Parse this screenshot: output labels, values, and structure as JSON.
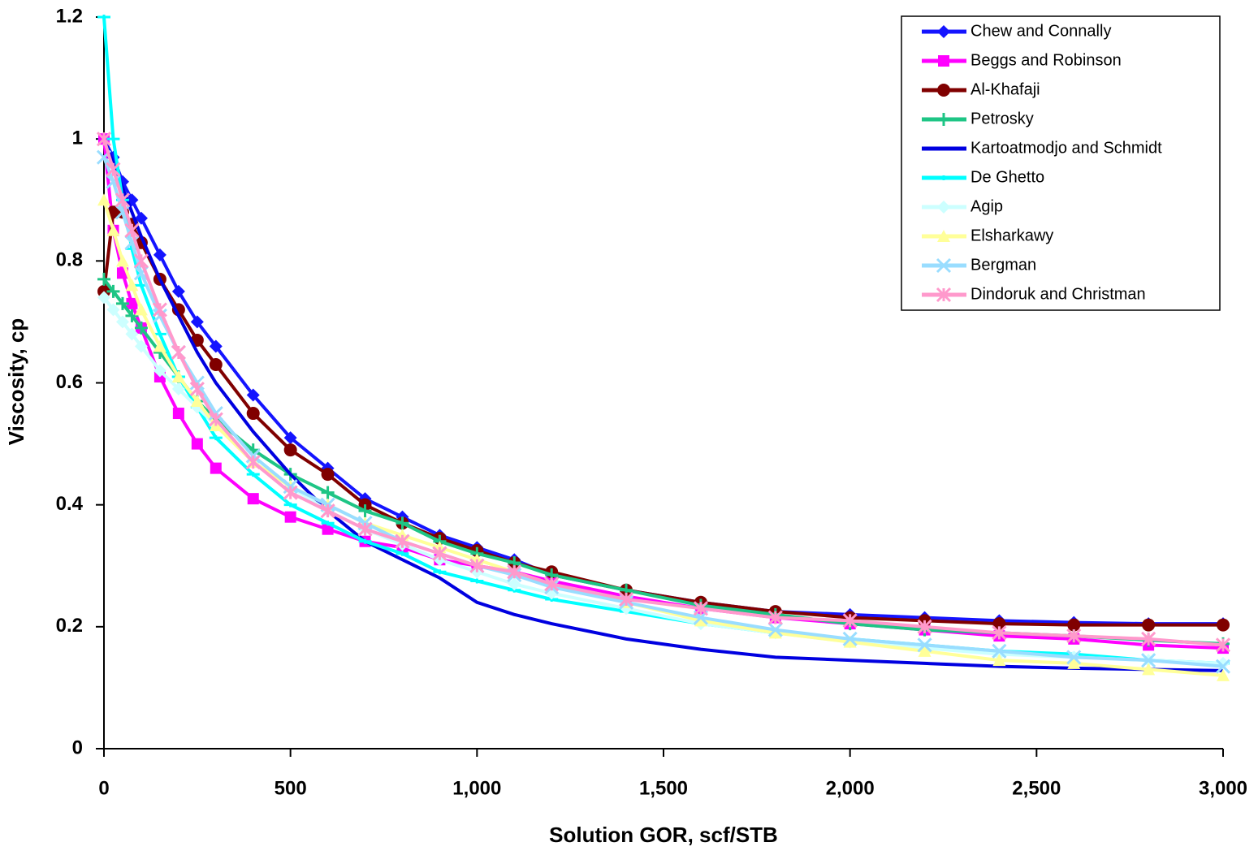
{
  "chart_data": {
    "type": "line",
    "xlabel": "Solution GOR, scf/STB",
    "ylabel": "Viscosity, cp",
    "x": [
      0,
      25,
      50,
      75,
      100,
      150,
      200,
      250,
      300,
      400,
      500,
      600,
      700,
      800,
      900,
      1000,
      1100,
      1200,
      1400,
      1600,
      1800,
      2000,
      2200,
      2400,
      2600,
      2800,
      3000
    ],
    "xlim": [
      0,
      3000
    ],
    "xticks": [
      0,
      500,
      {
        "value": 1000,
        "label": "1,000"
      },
      {
        "value": 1500,
        "label": "1,500"
      },
      {
        "value": 2000,
        "label": "2,000"
      },
      {
        "value": 2500,
        "label": "2,500"
      },
      {
        "value": 3000,
        "label": "3,000"
      }
    ],
    "ylim": [
      0,
      1.2
    ],
    "yticks": [
      0,
      0.2,
      0.4,
      0.6,
      0.8,
      1,
      1.2
    ],
    "legend": "top-right",
    "series": [
      {
        "name": "Chew and Connally",
        "color": "#1414ff",
        "marker": "diamond",
        "values": [
          1.0,
          0.97,
          0.93,
          0.9,
          0.87,
          0.81,
          0.75,
          0.7,
          0.66,
          0.58,
          0.51,
          0.46,
          0.41,
          0.38,
          0.35,
          0.33,
          0.31,
          0.285,
          0.26,
          0.24,
          0.225,
          0.22,
          0.215,
          0.21,
          0.207,
          0.205,
          0.205
        ]
      },
      {
        "name": "Beggs and Robinson",
        "color": "#ff00ff",
        "marker": "square",
        "values": [
          1.0,
          0.85,
          0.78,
          0.73,
          0.69,
          0.61,
          0.55,
          0.5,
          0.46,
          0.41,
          0.38,
          0.36,
          0.34,
          0.33,
          0.31,
          0.3,
          0.29,
          0.275,
          0.25,
          0.23,
          0.215,
          0.205,
          0.195,
          0.185,
          0.18,
          0.17,
          0.165
        ]
      },
      {
        "name": "Al-Khafaji",
        "color": "#800000",
        "marker": "circle",
        "values": [
          0.75,
          0.88,
          0.88,
          0.86,
          0.83,
          0.77,
          0.72,
          0.67,
          0.63,
          0.55,
          0.49,
          0.45,
          0.4,
          0.37,
          0.345,
          0.325,
          0.305,
          0.29,
          0.26,
          0.24,
          0.225,
          0.215,
          0.21,
          0.205,
          0.203,
          0.203,
          0.203
        ]
      },
      {
        "name": "Petrosky",
        "color": "#1ec585",
        "marker": "plus",
        "values": [
          0.77,
          0.75,
          0.73,
          0.71,
          0.69,
          0.65,
          0.61,
          0.57,
          0.54,
          0.49,
          0.45,
          0.42,
          0.39,
          0.37,
          0.34,
          0.32,
          0.305,
          0.285,
          0.26,
          0.235,
          0.22,
          0.205,
          0.195,
          0.19,
          0.185,
          0.178,
          0.172
        ]
      },
      {
        "name": "Kartoatmodjo and Schmidt",
        "color": "#0000e0",
        "marker": "none",
        "values": [
          1.0,
          0.96,
          0.92,
          0.88,
          0.84,
          0.77,
          0.71,
          0.65,
          0.6,
          0.52,
          0.45,
          0.39,
          0.34,
          0.31,
          0.28,
          0.24,
          0.22,
          0.205,
          0.18,
          0.163,
          0.15,
          0.145,
          0.14,
          0.135,
          0.132,
          0.13,
          0.128
        ]
      },
      {
        "name": "De Ghetto",
        "color": "#00ffff",
        "marker": "dash",
        "values": [
          1.2,
          1.0,
          0.9,
          0.82,
          0.76,
          0.68,
          0.61,
          0.56,
          0.51,
          0.45,
          0.4,
          0.37,
          0.34,
          0.32,
          0.29,
          0.275,
          0.26,
          0.245,
          0.225,
          0.205,
          0.19,
          0.18,
          0.17,
          0.16,
          0.155,
          0.145,
          0.14
        ]
      },
      {
        "name": "Agip",
        "color": "#ccffff",
        "marker": "diamond",
        "values": [
          0.74,
          0.72,
          0.7,
          0.68,
          0.66,
          0.62,
          0.59,
          0.56,
          0.53,
          0.47,
          0.43,
          0.39,
          0.36,
          0.335,
          0.31,
          0.29,
          0.27,
          0.255,
          0.23,
          0.205,
          0.19,
          0.175,
          0.165,
          0.155,
          0.15,
          0.145,
          0.14
        ]
      },
      {
        "name": "Elsharkawy",
        "color": "#ffff99",
        "marker": "triangle",
        "values": [
          0.9,
          0.85,
          0.8,
          0.76,
          0.72,
          0.66,
          0.61,
          0.57,
          0.53,
          0.47,
          0.43,
          0.4,
          0.37,
          0.35,
          0.33,
          0.31,
          0.29,
          0.27,
          0.24,
          0.21,
          0.19,
          0.175,
          0.16,
          0.145,
          0.14,
          0.13,
          0.12
        ]
      },
      {
        "name": "Bergman",
        "color": "#99ddff",
        "marker": "x",
        "values": [
          0.97,
          0.93,
          0.88,
          0.83,
          0.78,
          0.71,
          0.65,
          0.6,
          0.55,
          0.48,
          0.43,
          0.4,
          0.37,
          0.34,
          0.32,
          0.3,
          0.285,
          0.265,
          0.24,
          0.215,
          0.195,
          0.18,
          0.17,
          0.16,
          0.15,
          0.145,
          0.135
        ]
      },
      {
        "name": "Dindoruk and Christman",
        "color": "#ff99cc",
        "marker": "star",
        "values": [
          1.0,
          0.95,
          0.9,
          0.85,
          0.8,
          0.72,
          0.65,
          0.59,
          0.54,
          0.47,
          0.42,
          0.39,
          0.36,
          0.34,
          0.32,
          0.3,
          0.29,
          0.27,
          0.245,
          0.23,
          0.215,
          0.21,
          0.2,
          0.19,
          0.185,
          0.18,
          0.17
        ]
      }
    ]
  }
}
